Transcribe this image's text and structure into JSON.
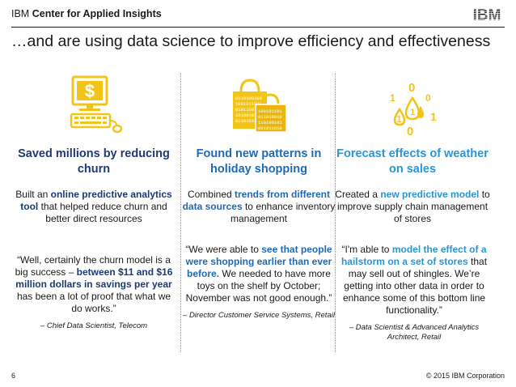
{
  "header": {
    "brand_ibm": "IBM",
    "brand_rest": "Center for Applied Insights",
    "logo": "IBM"
  },
  "headline": "…and are using data science to improve efficiency and effectiveness",
  "columns": [
    {
      "icon": "computer-dollar-icon",
      "title": "Saved millions by reducing churn",
      "body_pre": "Built an ",
      "body_hl": "online predictive analytics tool",
      "body_post": " that helped reduce churn and better direct resources",
      "quote_pre": "“Well, certainly the churn model is a big success – ",
      "quote_hl": "between $11 and $16 million dollars in savings per year",
      "quote_post": " has been a lot of proof that what we do works.”",
      "attribution": "– Chief Data Scientist, Telecom"
    },
    {
      "icon": "shopping-bags-icon",
      "title": "Found new patterns in holiday shopping",
      "body_pre": "Combined ",
      "body_hl": "trends from different data sources",
      "body_post": " to enhance inventory management",
      "quote_pre": "“We were able to ",
      "quote_hl": "see that people were shopping earlier than ever before.",
      "quote_post": " We needed to have more toys on the shelf by October; November was not good enough.”",
      "attribution": "– Director Customer Service Systems, Retail"
    },
    {
      "icon": "data-raindrops-icon",
      "title": "Forecast effects of weather on sales",
      "body_pre": "Created a ",
      "body_hl": "new predictive model",
      "body_post": " to improve supply chain management of stores",
      "quote_pre": "“I'm able to ",
      "quote_hl": "model the effect of a hailstorm on a set of stores",
      "quote_post": " that may sell out of shingles. We’re getting into other data in order to enhance some of this bottom line functionality.”",
      "attribution": "– Data Scientist & Advanced Analytics Architect, Retail"
    }
  ],
  "footer": {
    "page_number": "6",
    "copyright": "© 2015 IBM Corporation"
  },
  "colors": {
    "navy": "#1d3a74",
    "blue": "#1f6ab5",
    "light_blue": "#2a95d4",
    "gold": "#f2c418"
  }
}
